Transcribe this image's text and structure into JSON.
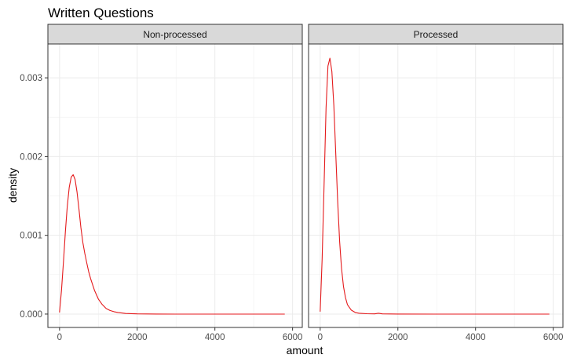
{
  "chart_data": {
    "type": "line",
    "title": "Written Questions",
    "xlabel": "amount",
    "ylabel": "density",
    "xlim": [
      -300,
      6250
    ],
    "ylim": [
      -0.00017,
      0.00343
    ],
    "x_ticks": [
      0,
      2000,
      4000,
      6000
    ],
    "x_tick_labels": [
      "0",
      "2000",
      "4000",
      "6000"
    ],
    "y_ticks": [
      0,
      0.001,
      0.002,
      0.003
    ],
    "y_tick_labels": [
      "0.000",
      "0.001",
      "0.002",
      "0.003"
    ],
    "grid": true,
    "line_color": "#e41a1c",
    "panels": [
      {
        "label": "Non-processed",
        "x": [
          0,
          50,
          100,
          150,
          200,
          250,
          300,
          350,
          400,
          450,
          500,
          550,
          600,
          650,
          700,
          750,
          800,
          900,
          1000,
          1100,
          1200,
          1300,
          1400,
          1500,
          1700,
          2000,
          2500,
          3000,
          4000,
          5000,
          5800
        ],
        "y": [
          2e-05,
          0.0003,
          0.00066,
          0.00105,
          0.00137,
          0.00161,
          0.00174,
          0.00177,
          0.00171,
          0.00155,
          0.00133,
          0.0011,
          0.00091,
          0.00077,
          0.00065,
          0.00054,
          0.00045,
          0.0003,
          0.00019,
          0.00012,
          7e-05,
          4.5e-05,
          3e-05,
          2e-05,
          8e-06,
          3e-06,
          1e-06,
          0,
          0,
          0,
          0
        ]
      },
      {
        "label": "Processed",
        "x": [
          0,
          50,
          100,
          150,
          200,
          250,
          300,
          350,
          400,
          450,
          500,
          550,
          600,
          650,
          700,
          800,
          900,
          1000,
          1200,
          1400,
          1500,
          1600,
          2000,
          3000,
          4000,
          5000,
          5900
        ],
        "y": [
          3e-05,
          0.0007,
          0.00165,
          0.00262,
          0.00315,
          0.00325,
          0.00308,
          0.00265,
          0.00205,
          0.00143,
          0.00092,
          0.00058,
          0.00035,
          0.00021,
          0.00012,
          5e-05,
          2e-05,
          1e-05,
          5e-06,
          3e-06,
          1e-05,
          3e-06,
          1e-06,
          0,
          0,
          0,
          0
        ]
      }
    ]
  }
}
